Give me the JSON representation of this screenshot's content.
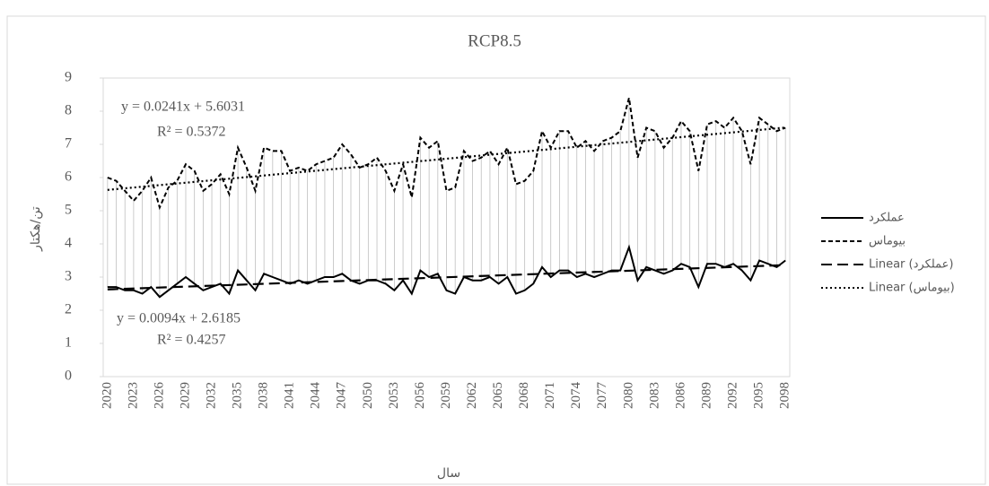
{
  "chart_data": {
    "type": "line",
    "title": "RCP8.5",
    "x_label": "سال",
    "y_label": "تن/هکتار",
    "categories": [
      "2020",
      null,
      null,
      "2023",
      null,
      null,
      "2026",
      null,
      null,
      "2029",
      null,
      null,
      "2032",
      null,
      null,
      "2035",
      null,
      null,
      "2038",
      null,
      null,
      "2041",
      null,
      null,
      "2044",
      null,
      null,
      "2047",
      null,
      null,
      "2050",
      null,
      null,
      "2053",
      null,
      null,
      "2056",
      null,
      null,
      "2059",
      null,
      null,
      "2062",
      null,
      null,
      "2065",
      null,
      null,
      "2068",
      null,
      null,
      "2071",
      null,
      null,
      "2074",
      null,
      null,
      "2077",
      null,
      null,
      "2080",
      null,
      null,
      "2083",
      null,
      null,
      "2086",
      null,
      null,
      "2089",
      null,
      null,
      "2092",
      null,
      null,
      "2095",
      null,
      null,
      "2098"
    ],
    "series": [
      {
        "name": "عملکرد",
        "color": "#000000",
        "dash": "solid",
        "values": [
          2.7,
          2.7,
          2.6,
          2.6,
          2.5,
          2.7,
          2.4,
          2.6,
          2.8,
          3.0,
          2.8,
          2.6,
          2.7,
          2.8,
          2.5,
          3.2,
          2.9,
          2.6,
          3.1,
          3.0,
          2.9,
          2.8,
          2.9,
          2.8,
          2.9,
          3.0,
          3.0,
          3.1,
          2.9,
          2.8,
          2.9,
          2.9,
          2.8,
          2.6,
          2.9,
          2.5,
          3.2,
          3.0,
          3.1,
          2.6,
          2.5,
          3.0,
          2.9,
          2.9,
          3.0,
          2.8,
          3.0,
          2.5,
          2.6,
          2.8,
          3.3,
          3.0,
          3.2,
          3.2,
          3.0,
          3.1,
          3.0,
          3.1,
          3.2,
          3.2,
          3.9,
          2.9,
          3.3,
          3.2,
          3.1,
          3.2,
          3.4,
          3.3,
          2.7,
          3.4,
          3.4,
          3.3,
          3.4,
          3.2,
          2.9,
          3.5,
          3.4,
          3.3,
          3.5
        ]
      },
      {
        "name": "بیوماس",
        "color": "#000000",
        "dash": "dashed",
        "values": [
          6.0,
          5.9,
          5.6,
          5.3,
          5.6,
          6.0,
          5.1,
          5.7,
          5.9,
          6.4,
          6.2,
          5.6,
          5.8,
          6.1,
          5.5,
          6.9,
          6.3,
          5.6,
          6.9,
          6.8,
          6.8,
          6.2,
          6.3,
          6.2,
          6.4,
          6.5,
          6.6,
          7.0,
          6.7,
          6.3,
          6.4,
          6.6,
          6.2,
          5.6,
          6.4,
          5.4,
          7.2,
          6.9,
          7.1,
          5.6,
          5.7,
          6.8,
          6.5,
          6.6,
          6.8,
          6.4,
          6.9,
          5.8,
          5.9,
          6.2,
          7.4,
          6.9,
          7.4,
          7.4,
          6.9,
          7.1,
          6.8,
          7.1,
          7.2,
          7.4,
          8.4,
          6.6,
          7.5,
          7.4,
          6.9,
          7.2,
          7.7,
          7.4,
          6.2,
          7.6,
          7.7,
          7.5,
          7.8,
          7.4,
          6.4,
          7.8,
          7.6,
          7.4,
          7.5
        ]
      }
    ],
    "trendlines": [
      {
        "name": "Linear (عملکرد)",
        "color": "#000000",
        "dash": "long-dash",
        "slope": 0.0094,
        "intercept": 2.6185,
        "equation": "y = 0.0094x + 2.6185",
        "r2": "R² = 0.4257"
      },
      {
        "name": "Linear (بیوماس)",
        "color": "#000000",
        "dash": "dotted",
        "slope": 0.0241,
        "intercept": 5.6031,
        "equation": "y = 0.0241x + 5.6031",
        "r2": "R² = 0.5372"
      }
    ],
    "ylim": [
      0,
      9
    ],
    "yticks": [
      0,
      1,
      2,
      3,
      4,
      5,
      6,
      7,
      8,
      9
    ],
    "grid": false,
    "drop_lines": true,
    "legend": "right"
  }
}
